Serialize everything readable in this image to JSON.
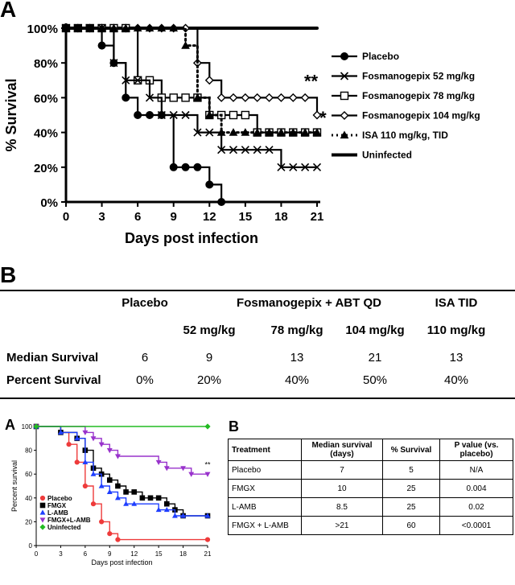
{
  "panelA": {
    "letter": "A",
    "chart_data": {
      "type": "line",
      "xlabel": "Days post infection",
      "ylabel": "% Survival",
      "xlim": [
        0,
        21
      ],
      "ylim": [
        0,
        100
      ],
      "xticks": [
        0,
        3,
        6,
        9,
        12,
        15,
        18,
        21
      ],
      "yticks": [
        0,
        20,
        40,
        60,
        80,
        100
      ],
      "ytick_labels": [
        "0%",
        "20%",
        "40%",
        "60%",
        "80%",
        "100%"
      ],
      "legend_position": "right",
      "series": [
        {
          "name": "Placebo",
          "marker": "circle",
          "x": [
            0,
            1,
            2,
            3,
            4,
            5,
            6,
            7,
            8,
            9,
            10,
            11,
            12,
            13
          ],
          "y": [
            100,
            100,
            100,
            90,
            80,
            60,
            50,
            50,
            50,
            20,
            20,
            20,
            10,
            0
          ]
        },
        {
          "name": "Fosmanogepix 52 mg/kg",
          "marker": "x",
          "x": [
            0,
            1,
            2,
            3,
            4,
            5,
            6,
            7,
            8,
            9,
            10,
            11,
            12,
            13,
            14,
            15,
            16,
            17,
            18,
            19,
            20,
            21
          ],
          "y": [
            100,
            100,
            100,
            100,
            80,
            70,
            70,
            60,
            50,
            50,
            50,
            40,
            40,
            30,
            30,
            30,
            30,
            30,
            20,
            20,
            20,
            20
          ]
        },
        {
          "name": "Fosmanogepix 78 mg/kg",
          "marker": "square",
          "x": [
            0,
            1,
            2,
            3,
            4,
            5,
            6,
            7,
            8,
            9,
            10,
            11,
            12,
            13,
            14,
            15,
            16,
            17,
            18,
            19,
            20,
            21
          ],
          "y": [
            100,
            100,
            100,
            100,
            100,
            100,
            70,
            70,
            60,
            60,
            60,
            60,
            50,
            50,
            50,
            50,
            40,
            40,
            40,
            40,
            40,
            40
          ]
        },
        {
          "name": "Fosmanogepix 104 mg/kg",
          "marker": "diamond",
          "x": [
            0,
            1,
            2,
            3,
            4,
            5,
            6,
            7,
            8,
            9,
            10,
            11,
            12,
            13,
            14,
            15,
            16,
            17,
            18,
            19,
            20,
            21
          ],
          "y": [
            100,
            100,
            100,
            100,
            100,
            100,
            100,
            100,
            100,
            100,
            100,
            80,
            70,
            60,
            60,
            60,
            60,
            60,
            60,
            60,
            60,
            50
          ]
        },
        {
          "name": "ISA 110 mg/kg, TID",
          "marker": "triangle",
          "x": [
            0,
            1,
            2,
            3,
            4,
            5,
            6,
            7,
            8,
            9,
            10,
            11,
            12,
            13,
            14,
            15,
            16,
            17,
            18,
            19,
            20,
            21
          ],
          "y": [
            100,
            100,
            100,
            100,
            100,
            100,
            100,
            100,
            100,
            100,
            90,
            60,
            50,
            40,
            40,
            40,
            40,
            40,
            40,
            40,
            40,
            40
          ]
        },
        {
          "name": "Uninfected",
          "marker": "dash",
          "x": [
            0,
            1,
            2,
            3,
            4,
            5,
            6,
            7,
            8,
            9,
            10,
            11,
            12,
            13,
            14,
            15,
            16,
            17,
            18,
            19,
            20,
            21
          ],
          "y": [
            100,
            100,
            100,
            100,
            100,
            100,
            100,
            100,
            100,
            100,
            100,
            100,
            100,
            100,
            100,
            100,
            100,
            100,
            100,
            100,
            100,
            100
          ]
        }
      ],
      "annotations": [
        {
          "text": "**",
          "x": 20.5,
          "y": 66
        },
        {
          "text": "*",
          "x": 21.5,
          "y": 45
        }
      ]
    }
  },
  "panelB": {
    "letter": "B",
    "headers": {
      "placebo": "Placebo",
      "fosmanogepix": "Fosmanogepix + ABT QD",
      "isa": "ISA TID"
    },
    "doses": [
      "52 mg/kg",
      "78 mg/kg",
      "104 mg/kg",
      "110 mg/kg"
    ],
    "rows": [
      {
        "label": "Median Survival",
        "values": [
          "6",
          "9",
          "13",
          "21",
          "13"
        ]
      },
      {
        "label": "Percent Survival",
        "values": [
          "0%",
          "20%",
          "40%",
          "50%",
          "40%"
        ]
      }
    ]
  },
  "panelA2": {
    "letter": "A",
    "chart_data": {
      "type": "line",
      "xlabel": "Days post infection",
      "ylabel": "Percent survival",
      "xlim": [
        0,
        21
      ],
      "ylim": [
        0,
        100
      ],
      "xticks": [
        0,
        3,
        6,
        9,
        12,
        15,
        18,
        21
      ],
      "yticks": [
        0,
        20,
        40,
        60,
        80,
        100
      ],
      "legend_position": "bottom-left",
      "series": [
        {
          "name": "Placebo",
          "color": "#ee3b3b",
          "marker": "circle",
          "x": [
            0,
            3,
            4,
            5,
            6,
            7,
            8,
            9,
            10,
            21
          ],
          "y": [
            100,
            95,
            85,
            70,
            50,
            35,
            20,
            10,
            5,
            5
          ]
        },
        {
          "name": "FMGX",
          "color": "#000000",
          "marker": "square",
          "x": [
            0,
            3,
            5,
            6,
            7,
            8,
            9,
            10,
            11,
            12,
            13,
            14,
            15,
            16,
            17,
            18,
            21
          ],
          "y": [
            100,
            95,
            90,
            80,
            65,
            60,
            55,
            50,
            45,
            45,
            40,
            40,
            40,
            35,
            30,
            25,
            25
          ]
        },
        {
          "name": "L-AMB",
          "color": "#1f3fff",
          "marker": "triangle",
          "x": [
            0,
            3,
            5,
            6,
            7,
            8,
            9,
            10,
            11,
            12,
            15,
            16,
            17,
            18,
            21
          ],
          "y": [
            100,
            95,
            90,
            70,
            60,
            50,
            45,
            40,
            35,
            35,
            30,
            30,
            25,
            25,
            25
          ]
        },
        {
          "name": "FMGX+L-AMB",
          "color": "#9933cc",
          "marker": "triangle-down",
          "x": [
            0,
            6,
            7,
            8,
            9,
            10,
            15,
            16,
            18,
            19,
            21
          ],
          "y": [
            100,
            95,
            90,
            85,
            80,
            75,
            70,
            65,
            65,
            60,
            60
          ]
        },
        {
          "name": "Uninfected",
          "color": "#22bb22",
          "marker": "diamond",
          "x": [
            0,
            21
          ],
          "y": [
            100,
            100
          ]
        }
      ],
      "annotations": [
        {
          "text": "**",
          "x": 21,
          "y": 66
        }
      ]
    }
  },
  "panelB2": {
    "letter": "B",
    "headers": [
      "Treatment",
      "Median survival (days)",
      "% Survival",
      "P value (vs. placebo)"
    ],
    "rows": [
      [
        "Placebo",
        "7",
        "5",
        "N/A"
      ],
      [
        "FMGX",
        "10",
        "25",
        "0.004"
      ],
      [
        "L-AMB",
        "8.5",
        "25",
        "0.02"
      ],
      [
        "FMGX + L-AMB",
        ">21",
        "60",
        "<0.0001"
      ]
    ]
  }
}
